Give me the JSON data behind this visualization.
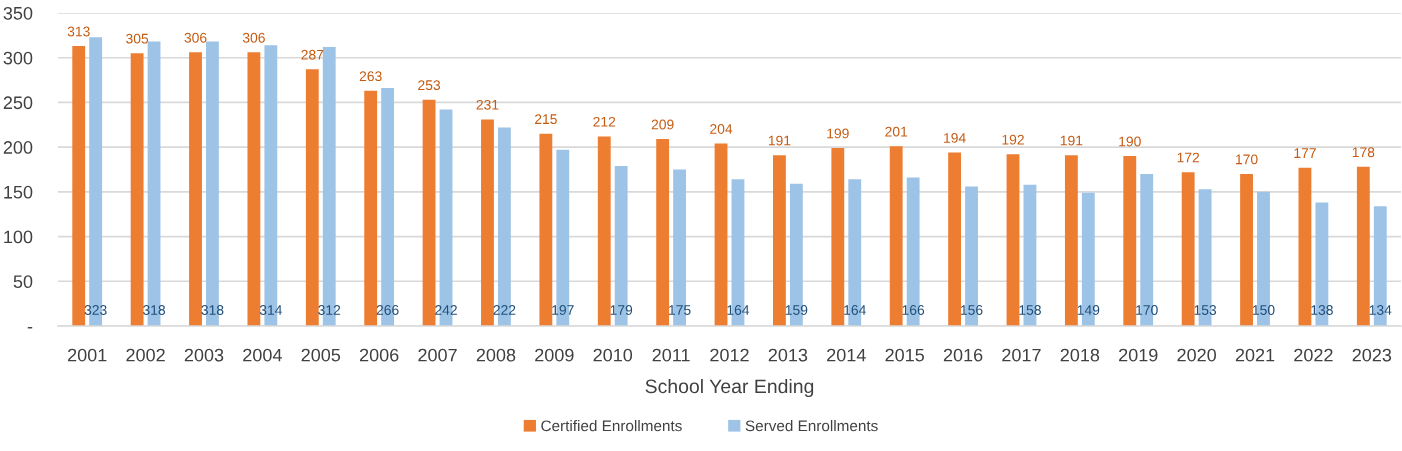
{
  "chart_data": {
    "type": "bar",
    "xlabel": "School Year Ending",
    "categories": [
      "2001",
      "2002",
      "2003",
      "2004",
      "2005",
      "2006",
      "2007",
      "2008",
      "2009",
      "2010",
      "2011",
      "2012",
      "2013",
      "2014",
      "2015",
      "2016",
      "2017",
      "2018",
      "2019",
      "2020",
      "2021",
      "2022",
      "2023"
    ],
    "series": [
      {
        "name": "Certified Enrollments",
        "color": "#ed7d31",
        "values": [
          313,
          305,
          306,
          306,
          287,
          263,
          253,
          231,
          215,
          212,
          209,
          204,
          191,
          199,
          201,
          194,
          192,
          191,
          190,
          172,
          170,
          177,
          178
        ]
      },
      {
        "name": "Served Enrollments",
        "color": "#9dc3e6",
        "values": [
          323,
          318,
          318,
          314,
          312,
          266,
          242,
          222,
          197,
          179,
          175,
          164,
          159,
          164,
          166,
          156,
          158,
          149,
          170,
          153,
          150,
          138,
          134
        ]
      }
    ],
    "ylim": [
      0,
      350
    ],
    "yticks": [
      {
        "value": 0,
        "label": "-"
      },
      50,
      100,
      150,
      200,
      250,
      300,
      350
    ],
    "grid": "y",
    "legend": "bottom",
    "data_labels": true
  }
}
